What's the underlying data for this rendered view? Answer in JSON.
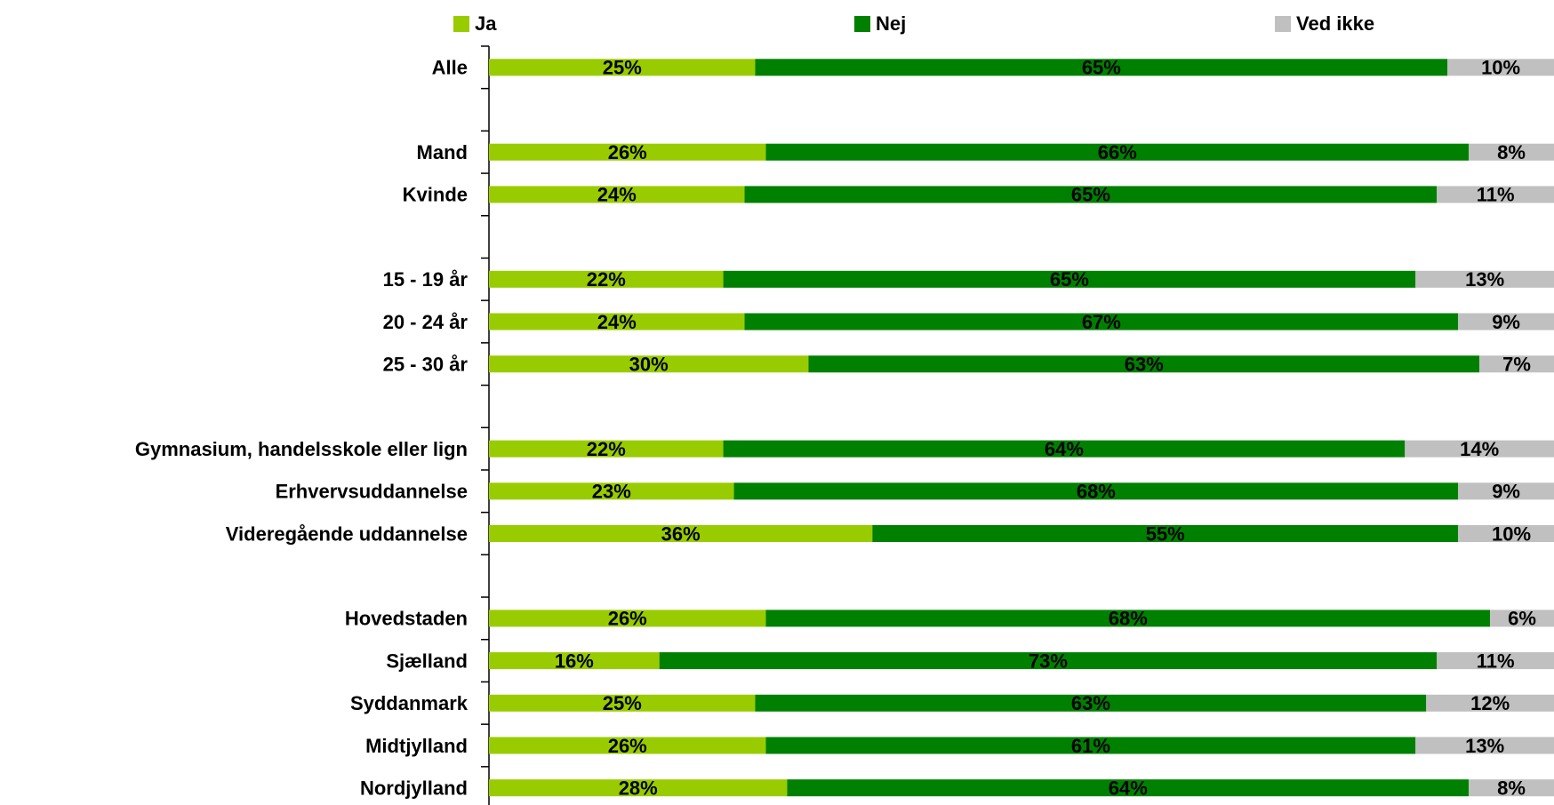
{
  "chart_data": {
    "type": "stacked_bar_horizontal",
    "categories": [
      "Alle",
      null,
      "Mand",
      "Kvinde",
      null,
      "15 - 19 år",
      "20 - 24 år",
      "25 - 30 år",
      null,
      "Gymnasium, handelsskole eller lign",
      "Erhvervsuddannelse",
      "Videregående uddannelse",
      null,
      "Hovedstaden",
      "Sjælland",
      "Syddanmark",
      "Midtjylland",
      "Nordjylland"
    ],
    "series": [
      {
        "name": "Ja",
        "color": "#99cc00",
        "values": [
          25,
          null,
          26,
          24,
          null,
          22,
          24,
          30,
          null,
          22,
          23,
          36,
          null,
          26,
          16,
          25,
          26,
          28
        ],
        "value_labels": [
          "25%",
          null,
          "26%",
          "24%",
          null,
          "22%",
          "24%",
          "30%",
          null,
          "22%",
          "23%",
          "36%",
          null,
          "26%",
          "16%",
          "25%",
          "26%",
          "28%"
        ]
      },
      {
        "name": "Nej",
        "color": "#008000",
        "values": [
          65,
          null,
          66,
          65,
          null,
          65,
          67,
          63,
          null,
          64,
          68,
          55,
          null,
          68,
          73,
          63,
          61,
          64
        ],
        "value_labels": [
          "65%",
          null,
          "66%",
          "65%",
          null,
          "65%",
          "67%",
          "63%",
          null,
          "64%",
          "68%",
          "55%",
          null,
          "68%",
          "73%",
          "63%",
          "61%",
          "64%"
        ]
      },
      {
        "name": "Ved ikke",
        "color": "#c0c0c0",
        "values": [
          10,
          null,
          8,
          11,
          null,
          13,
          9,
          7,
          null,
          14,
          9,
          10,
          null,
          6,
          11,
          12,
          13,
          8
        ],
        "value_labels": [
          "10%",
          null,
          "8%",
          "11%",
          null,
          "13%",
          "9%",
          "7%",
          null,
          "14%",
          "9%",
          "10%",
          null,
          "6%",
          "11%",
          "12%",
          "13%",
          "8%"
        ]
      }
    ],
    "xlim": [
      0,
      100
    ],
    "legend": "top"
  }
}
